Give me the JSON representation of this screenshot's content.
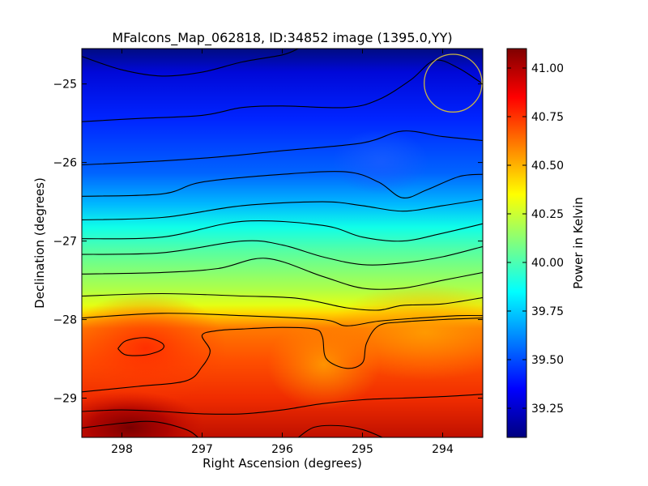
{
  "chart_data": {
    "type": "heatmap",
    "title": "MFalcons_Map_062818, ID:34852 image (1395.0,YY)",
    "xlabel": "Right Ascension (degrees)",
    "ylabel": "Declination (degrees)",
    "xlim": [
      298.5,
      293.5
    ],
    "ylim": [
      -29.5,
      -24.55
    ],
    "x_ticks": [
      298,
      297,
      296,
      295,
      294
    ],
    "x_tick_labels": [
      "298",
      "297",
      "296",
      "295",
      "294"
    ],
    "y_ticks": [
      -25,
      -26,
      -27,
      -28,
      -29
    ],
    "y_tick_labels": [
      "−25",
      "−26",
      "−27",
      "−28",
      "−29"
    ],
    "colorbar": {
      "label": "Power in Kelvin",
      "range": [
        39.1,
        41.1
      ],
      "ticks": [
        39.25,
        39.5,
        39.75,
        40.0,
        40.25,
        40.5,
        40.75,
        41.0
      ],
      "tick_labels": [
        "39.25",
        "39.50",
        "39.75",
        "40.00",
        "40.25",
        "40.50",
        "40.75",
        "41.00"
      ],
      "colormap": "jet"
    },
    "marker_circle": {
      "ra": 293.87,
      "dec": -24.99,
      "radius_deg": 0.36,
      "color": "#c8b446"
    },
    "contours": [
      {
        "ra": [
          298.5,
          298.0,
          297.5,
          297.0,
          296.5,
          296.0,
          295.8
        ],
        "dec": [
          -24.65,
          -24.82,
          -24.9,
          -24.85,
          -24.72,
          -24.63,
          -24.55
        ]
      },
      {
        "ra": [
          298.5,
          297.8,
          297.0,
          296.5,
          296.0,
          295.2,
          294.8,
          294.4,
          294.1,
          293.8,
          293.5
        ],
        "dec": [
          -25.48,
          -25.44,
          -25.4,
          -25.3,
          -25.28,
          -25.3,
          -25.2,
          -24.95,
          -24.7,
          -24.8,
          -25.0
        ]
      },
      {
        "ra": [
          298.5,
          297.5,
          296.8,
          296.0,
          295.0,
          294.5,
          294.0,
          293.5
        ],
        "dec": [
          -26.03,
          -25.98,
          -25.93,
          -25.85,
          -25.75,
          -25.6,
          -25.67,
          -25.72
        ]
      },
      {
        "ra": [
          298.5,
          297.5,
          297.0,
          296.0,
          295.2,
          294.8,
          294.5,
          294.2,
          293.8,
          293.5
        ],
        "dec": [
          -26.43,
          -26.4,
          -26.25,
          -26.15,
          -26.12,
          -26.25,
          -26.45,
          -26.35,
          -26.18,
          -26.15
        ]
      },
      {
        "ra": [
          298.5,
          297.5,
          296.5,
          295.5,
          295.0,
          294.5,
          294.0,
          293.5
        ],
        "dec": [
          -26.73,
          -26.7,
          -26.55,
          -26.5,
          -26.55,
          -26.62,
          -26.55,
          -26.47
        ]
      },
      {
        "ra": [
          298.5,
          297.5,
          296.5,
          295.5,
          295.0,
          294.5,
          294.0,
          293.5
        ],
        "dec": [
          -26.97,
          -26.95,
          -26.75,
          -26.8,
          -26.95,
          -27.0,
          -26.9,
          -26.78
        ]
      },
      {
        "ra": [
          298.5,
          297.5,
          296.5,
          296.0,
          295.5,
          295.0,
          294.5,
          294.0,
          293.5
        ],
        "dec": [
          -27.17,
          -27.15,
          -27.0,
          -27.05,
          -27.2,
          -27.3,
          -27.28,
          -27.2,
          -27.07
        ]
      },
      {
        "ra": [
          298.5,
          297.5,
          296.8,
          296.2,
          295.5,
          295.0,
          294.5,
          294.0,
          293.5
        ],
        "dec": [
          -27.42,
          -27.4,
          -27.35,
          -27.22,
          -27.45,
          -27.6,
          -27.6,
          -27.5,
          -27.4
        ]
      },
      {
        "ra": [
          298.5,
          297.5,
          296.5,
          295.8,
          295.2,
          294.8,
          294.5,
          294.0,
          293.5
        ],
        "dec": [
          -27.7,
          -27.67,
          -27.7,
          -27.73,
          -27.85,
          -27.88,
          -27.82,
          -27.8,
          -27.72
        ]
      },
      {
        "ra": [
          298.5,
          297.5,
          296.5,
          295.5,
          295.2,
          294.8,
          294.3,
          293.8,
          293.5
        ],
        "dec": [
          -27.98,
          -27.92,
          -27.95,
          -28.0,
          -28.08,
          -28.02,
          -27.98,
          -27.95,
          -27.95
        ]
      },
      {
        "ra": [
          298.5,
          297.8,
          297.2,
          297.0,
          296.9,
          297.0,
          296.8,
          296.5,
          296.0,
          295.6,
          295.5,
          295.45,
          295.2,
          295.0,
          294.95,
          294.8,
          294.5,
          294.0,
          293.5
        ],
        "dec": [
          -28.92,
          -28.85,
          -28.78,
          -28.6,
          -28.4,
          -28.2,
          -28.14,
          -28.12,
          -28.1,
          -28.12,
          -28.22,
          -28.5,
          -28.62,
          -28.55,
          -28.3,
          -28.08,
          -28.03,
          -28.0,
          -27.98
        ]
      },
      {
        "ra": [
          298.05,
          297.95,
          297.7,
          297.5,
          297.5,
          297.7,
          297.95,
          298.05
        ],
        "dec": [
          -28.37,
          -28.27,
          -28.23,
          -28.3,
          -28.38,
          -28.45,
          -28.45,
          -28.37
        ]
      },
      {
        "ra": [
          298.5,
          298.0,
          297.5,
          297.0,
          296.5,
          296.0,
          295.5,
          295.0,
          294.5,
          294.0,
          293.5
        ],
        "dec": [
          -29.17,
          -29.15,
          -29.17,
          -29.2,
          -29.2,
          -29.15,
          -29.07,
          -29.02,
          -29.0,
          -28.98,
          -28.95
        ]
      },
      {
        "ra": [
          298.5,
          298.0,
          297.6,
          297.2,
          297.05
        ],
        "dec": [
          -29.38,
          -29.32,
          -29.3,
          -29.4,
          -29.5
        ]
      },
      {
        "ra": [
          295.8,
          295.6,
          295.3,
          295.0,
          294.75
        ],
        "dec": [
          -29.5,
          -29.37,
          -29.35,
          -29.4,
          -29.5
        ]
      }
    ]
  }
}
